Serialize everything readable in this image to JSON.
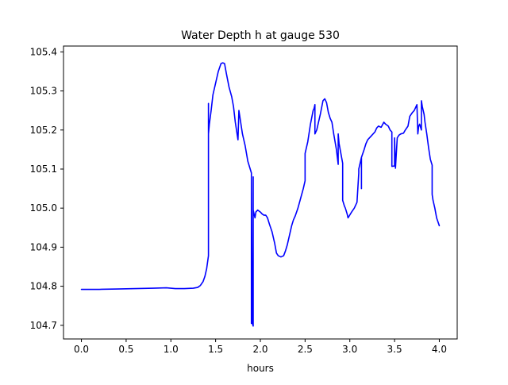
{
  "chart_data": {
    "type": "line",
    "title": "Water Depth h at gauge 530",
    "xlabel": "hours",
    "ylabel": "",
    "xlim": [
      -0.2,
      4.2
    ],
    "ylim": [
      104.665,
      105.415
    ],
    "xticks": [
      0.0,
      0.5,
      1.0,
      1.5,
      2.0,
      2.5,
      3.0,
      3.5,
      4.0
    ],
    "xtick_labels": [
      "0.0",
      "0.5",
      "1.0",
      "1.5",
      "2.0",
      "2.5",
      "3.0",
      "3.5",
      "4.0"
    ],
    "yticks": [
      104.7,
      104.8,
      104.9,
      105.0,
      105.1,
      105.2,
      105.3,
      105.4
    ],
    "ytick_labels": [
      "104.7",
      "104.8",
      "104.9",
      "105.0",
      "105.1",
      "105.2",
      "105.3",
      "105.4"
    ],
    "grid": false,
    "series": [
      {
        "color": "#0000ff",
        "x": [
          0.0,
          0.2,
          0.4,
          0.6,
          0.8,
          0.95,
          1.0,
          1.05,
          1.15,
          1.25,
          1.3,
          1.33,
          1.36,
          1.38,
          1.4,
          1.42,
          1.42,
          1.42,
          1.43,
          1.45,
          1.47,
          1.5,
          1.53,
          1.56,
          1.58,
          1.6,
          1.62,
          1.65,
          1.68,
          1.7,
          1.72,
          1.75,
          1.76,
          1.78,
          1.8,
          1.83,
          1.86,
          1.9,
          1.9,
          1.9,
          1.91,
          1.92,
          1.92,
          1.92,
          1.93,
          1.94,
          1.95,
          1.97,
          2.0,
          2.02,
          2.04,
          2.06,
          2.08,
          2.1,
          2.13,
          2.16,
          2.18,
          2.2,
          2.23,
          2.26,
          2.28,
          2.3,
          2.33,
          2.35,
          2.37,
          2.39,
          2.42,
          2.45,
          2.48,
          2.5,
          2.5,
          2.53,
          2.56,
          2.59,
          2.6,
          2.61,
          2.61,
          2.63,
          2.65,
          2.67,
          2.7,
          2.72,
          2.74,
          2.76,
          2.78,
          2.8,
          2.82,
          2.85,
          2.87,
          2.87,
          2.88,
          2.9,
          2.92,
          2.92,
          2.94,
          2.95,
          2.97,
          2.98,
          3.02,
          3.05,
          3.08,
          3.1,
          3.1,
          3.13,
          3.13,
          3.13,
          3.16,
          3.18,
          3.2,
          3.24,
          3.28,
          3.3,
          3.32,
          3.35,
          3.38,
          3.4,
          3.43,
          3.45,
          3.47,
          3.47,
          3.5,
          3.5,
          3.51,
          3.53,
          3.55,
          3.57,
          3.6,
          3.62,
          3.65,
          3.67,
          3.7,
          3.72,
          3.74,
          3.75,
          3.76,
          3.77,
          3.78,
          3.8,
          3.8,
          3.81,
          3.82,
          3.83,
          3.84,
          3.86,
          3.88,
          3.9,
          3.92,
          3.92,
          3.93,
          3.95,
          3.97,
          4.0
        ],
        "y": [
          104.792,
          104.792,
          104.793,
          104.794,
          104.795,
          104.796,
          104.795,
          104.794,
          104.794,
          104.795,
          104.797,
          104.802,
          104.812,
          104.825,
          104.845,
          104.878,
          105.268,
          105.19,
          105.215,
          105.25,
          105.29,
          105.32,
          105.35,
          105.37,
          105.372,
          105.37,
          105.345,
          105.31,
          105.285,
          105.26,
          105.22,
          105.175,
          105.25,
          105.22,
          105.19,
          105.16,
          105.12,
          105.09,
          104.705,
          105.08,
          104.705,
          104.698,
          105.08,
          104.995,
          104.985,
          104.975,
          104.99,
          104.995,
          104.99,
          104.985,
          104.982,
          104.982,
          104.975,
          104.96,
          104.94,
          104.91,
          104.885,
          104.878,
          104.875,
          104.878,
          104.89,
          104.905,
          104.935,
          104.955,
          104.97,
          104.98,
          105.0,
          105.025,
          105.05,
          105.07,
          105.14,
          105.17,
          105.215,
          105.25,
          105.255,
          105.265,
          105.19,
          105.2,
          105.22,
          105.24,
          105.275,
          105.28,
          105.27,
          105.245,
          105.23,
          105.22,
          105.19,
          105.15,
          105.112,
          105.19,
          105.165,
          105.14,
          105.115,
          105.02,
          105.005,
          105.0,
          104.985,
          104.975,
          104.99,
          105.0,
          105.015,
          105.09,
          105.1,
          105.13,
          105.05,
          105.13,
          105.15,
          105.165,
          105.175,
          105.185,
          105.195,
          105.205,
          105.21,
          105.207,
          105.22,
          105.215,
          105.21,
          105.2,
          105.195,
          105.107,
          105.108,
          105.18,
          105.102,
          105.18,
          105.187,
          105.19,
          105.192,
          105.2,
          105.21,
          105.235,
          105.245,
          105.25,
          105.26,
          105.265,
          105.19,
          105.21,
          105.215,
          105.2,
          105.275,
          105.26,
          105.25,
          105.24,
          105.22,
          105.19,
          105.155,
          105.125,
          105.11,
          105.035,
          105.02,
          105.0,
          104.975,
          104.955
        ]
      }
    ]
  }
}
